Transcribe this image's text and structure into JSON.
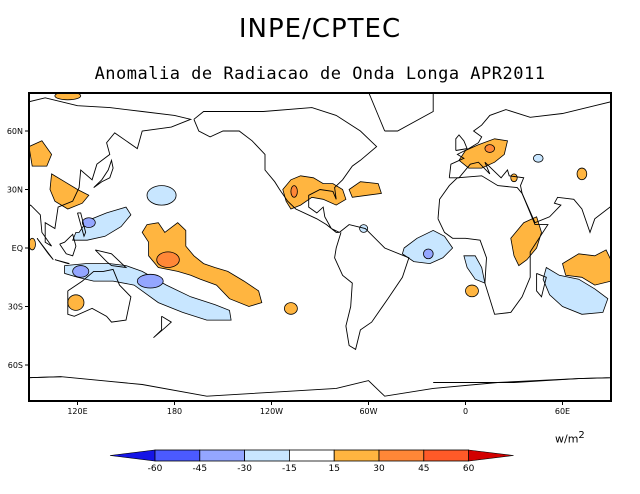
{
  "header": {
    "title": "INPE/CPTEC",
    "subtitle": "Anomalia de Radiacao de Onda Longa APR2011"
  },
  "map": {
    "lon_range": [
      90,
      450
    ],
    "lat_range": [
      -80,
      80
    ],
    "lon_ticks": [
      {
        "lon": 120,
        "label": "120E"
      },
      {
        "lon": 180,
        "label": "180"
      },
      {
        "lon": 240,
        "label": "120W"
      },
      {
        "lon": 300,
        "label": "60W"
      },
      {
        "lon": 360,
        "label": "0"
      },
      {
        "lon": 420,
        "label": "60E"
      }
    ],
    "lat_ticks": [
      {
        "lat": 60,
        "label": "60N"
      },
      {
        "lat": 30,
        "label": "30N"
      },
      {
        "lat": 0,
        "label": "EQ"
      },
      {
        "lat": -30,
        "label": "30S"
      },
      {
        "lat": -60,
        "label": "60S"
      }
    ],
    "anomaly_regions": [
      {
        "level": 1,
        "pts": [
          [
            163,
            12
          ],
          [
            170,
            13
          ],
          [
            174,
            8
          ],
          [
            182,
            13
          ],
          [
            187,
            9
          ],
          [
            187,
            1
          ],
          [
            192,
            -4
          ],
          [
            198,
            -8
          ],
          [
            205,
            -10
          ],
          [
            213,
            -12
          ],
          [
            223,
            -17
          ],
          [
            232,
            -22
          ],
          [
            234,
            -28
          ],
          [
            226,
            -30
          ],
          [
            214,
            -26
          ],
          [
            206,
            -19
          ],
          [
            196,
            -16
          ],
          [
            190,
            -14
          ],
          [
            182,
            -12
          ],
          [
            170,
            -10
          ],
          [
            164,
            -4
          ],
          [
            164,
            3
          ],
          [
            160,
            8
          ]
        ]
      },
      {
        "level": 2,
        "ellipse": [
          176,
          -6,
          7,
          4
        ]
      },
      {
        "level": -1,
        "pts": [
          [
            112,
            -9
          ],
          [
            125,
            -8
          ],
          [
            140,
            -8
          ],
          [
            150,
            -9
          ],
          [
            160,
            -12
          ],
          [
            175,
            -19
          ],
          [
            190,
            -25
          ],
          [
            205,
            -29
          ],
          [
            214,
            -32
          ],
          [
            215,
            -37
          ],
          [
            200,
            -37
          ],
          [
            185,
            -33
          ],
          [
            170,
            -28
          ],
          [
            155,
            -19
          ],
          [
            142,
            -17
          ],
          [
            130,
            -17
          ],
          [
            120,
            -15
          ],
          [
            112,
            -13
          ]
        ]
      },
      {
        "level": -2,
        "ellipse": [
          122,
          -12,
          5,
          3
        ]
      },
      {
        "level": -2,
        "ellipse": [
          165,
          -17,
          8,
          3.5
        ]
      },
      {
        "level": -1,
        "pts": [
          [
            121,
            8
          ],
          [
            126,
            14
          ],
          [
            138,
            18
          ],
          [
            150,
            21
          ],
          [
            153,
            17
          ],
          [
            147,
            11
          ],
          [
            137,
            6
          ],
          [
            126,
            4
          ],
          [
            117,
            4
          ],
          [
            119,
            8
          ]
        ]
      },
      {
        "level": -2,
        "ellipse": [
          127,
          13,
          4,
          2.5
        ]
      },
      {
        "level": -1,
        "ellipse": [
          172,
          27,
          9,
          5
        ]
      },
      {
        "level": 1,
        "pts": [
          [
            247,
            30
          ],
          [
            252,
            35
          ],
          [
            258,
            37
          ],
          [
            266,
            36
          ],
          [
            272,
            33
          ],
          [
            278,
            33
          ],
          [
            284,
            30
          ],
          [
            286,
            25
          ],
          [
            280,
            22
          ],
          [
            272,
            25
          ],
          [
            265,
            26
          ],
          [
            258,
            22
          ],
          [
            252,
            20
          ],
          [
            249,
            24
          ]
        ]
      },
      {
        "level": 2,
        "ellipse": [
          254,
          29,
          2,
          3
        ]
      },
      {
        "level": 1,
        "pts": [
          [
            288,
            30
          ],
          [
            295,
            34
          ],
          [
            306,
            33
          ],
          [
            308,
            28
          ],
          [
            299,
            27
          ],
          [
            290,
            26
          ]
        ]
      },
      {
        "level": -1,
        "ellipse": [
          297,
          10,
          2.5,
          2
        ]
      },
      {
        "level": -1,
        "pts": [
          [
            322,
            0
          ],
          [
            330,
            5
          ],
          [
            340,
            9
          ],
          [
            347,
            6
          ],
          [
            352,
            0
          ],
          [
            346,
            -5
          ],
          [
            338,
            -8
          ],
          [
            328,
            -7
          ],
          [
            321,
            -3
          ]
        ]
      },
      {
        "level": -2,
        "ellipse": [
          337,
          -3,
          3,
          2.5
        ]
      },
      {
        "level": -1,
        "pts": [
          [
            359,
            -4
          ],
          [
            366,
            -4
          ],
          [
            370,
            -10
          ],
          [
            372,
            -18
          ],
          [
            366,
            -16
          ],
          [
            361,
            -10
          ]
        ]
      },
      {
        "level": 1,
        "ellipse": [
          364,
          -22,
          4,
          3
        ]
      },
      {
        "level": 1,
        "pts": [
          [
            388,
            5
          ],
          [
            396,
            13
          ],
          [
            404,
            16
          ],
          [
            407,
            8
          ],
          [
            404,
            0
          ],
          [
            398,
            -6
          ],
          [
            393,
            -9
          ],
          [
            390,
            -4
          ]
        ]
      },
      {
        "level": 1,
        "pts": [
          [
            420,
            -8
          ],
          [
            430,
            -3
          ],
          [
            440,
            -4
          ],
          [
            447,
            -1
          ],
          [
            451,
            -8
          ],
          [
            450,
            -17
          ],
          [
            440,
            -19
          ],
          [
            432,
            -15
          ],
          [
            422,
            -14
          ]
        ]
      },
      {
        "level": -1,
        "pts": [
          [
            410,
            -10
          ],
          [
            418,
            -14
          ],
          [
            430,
            -16
          ],
          [
            440,
            -21
          ],
          [
            448,
            -26
          ],
          [
            445,
            -33
          ],
          [
            432,
            -34
          ],
          [
            420,
            -30
          ],
          [
            412,
            -24
          ],
          [
            408,
            -16
          ]
        ]
      },
      {
        "level": 1,
        "pts": [
          [
            356,
            45
          ],
          [
            360,
            50
          ],
          [
            368,
            53
          ],
          [
            378,
            56
          ],
          [
            386,
            55
          ],
          [
            384,
            48
          ],
          [
            378,
            44
          ],
          [
            370,
            41
          ],
          [
            362,
            41
          ]
        ]
      },
      {
        "level": 2,
        "ellipse": [
          375,
          51,
          3,
          2
        ]
      },
      {
        "level": -1,
        "ellipse": [
          405,
          46,
          3,
          2
        ]
      },
      {
        "level": 1,
        "ellipse": [
          432,
          38,
          3,
          3
        ]
      },
      {
        "level": 1,
        "ellipse": [
          390,
          36,
          2,
          2
        ]
      },
      {
        "level": 1,
        "pts": [
          [
            90,
            52
          ],
          [
            98,
            55
          ],
          [
            104,
            48
          ],
          [
            101,
            42
          ],
          [
            92,
            42
          ]
        ]
      },
      {
        "level": 1,
        "pts": [
          [
            104,
            38
          ],
          [
            112,
            34
          ],
          [
            120,
            30
          ],
          [
            127,
            27
          ],
          [
            123,
            23
          ],
          [
            114,
            20
          ],
          [
            106,
            24
          ],
          [
            103,
            30
          ]
        ]
      },
      {
        "level": 1,
        "ellipse": [
          119,
          -28,
          5,
          4
        ]
      },
      {
        "level": 1,
        "ellipse": [
          252,
          -31,
          4,
          3
        ]
      },
      {
        "level": 1,
        "ellipse": [
          114,
          78,
          8,
          2
        ]
      },
      {
        "level": 1,
        "ellipse": [
          92,
          2,
          2,
          3
        ]
      }
    ]
  },
  "colorbar": {
    "labels": [
      "-60",
      "-45",
      "-30",
      "-15",
      "15",
      "30",
      "45",
      "60"
    ],
    "colors": [
      "#1515e6",
      "#4b5aff",
      "#94a6ff",
      "#c8e6ff",
      "#ffffff",
      "#ffb540",
      "#ff8737",
      "#ff5a28",
      "#d20000"
    ],
    "unit": "w/m",
    "unit_exp": "2"
  }
}
